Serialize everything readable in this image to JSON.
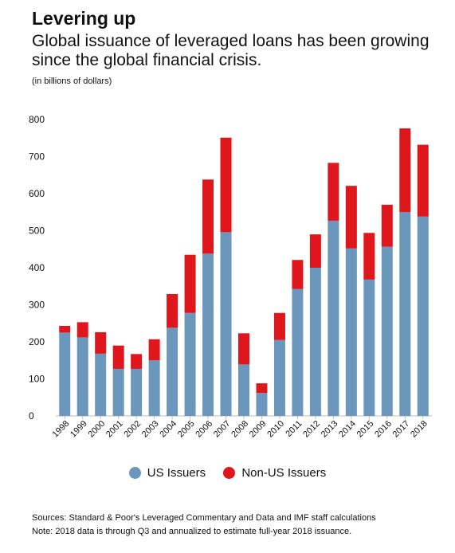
{
  "title": "Levering up",
  "subtitle": "Global issuance of leveraged loans has been growing since the global financial crisis.",
  "unit_note": "(in billions of dollars)",
  "chart_data": {
    "type": "bar",
    "stacked": true,
    "categories": [
      "1998",
      "1999",
      "2000",
      "2001",
      "2002",
      "2003",
      "2004",
      "2005",
      "2006",
      "2007",
      "2008",
      "2009",
      "2010",
      "2011",
      "2012",
      "2013",
      "2014",
      "2015",
      "2016",
      "2017",
      "2018"
    ],
    "series": [
      {
        "name": "US Issuers",
        "color": "#6b97bd",
        "values": [
          225,
          212,
          168,
          127,
          127,
          150,
          238,
          278,
          438,
          496,
          139,
          62,
          205,
          343,
          400,
          527,
          452,
          368,
          457,
          550,
          538
        ]
      },
      {
        "name": "Non-US Issuers",
        "color": "#e0161d",
        "values": [
          18,
          41,
          58,
          63,
          40,
          57,
          91,
          157,
          200,
          255,
          84,
          26,
          73,
          78,
          90,
          156,
          169,
          126,
          113,
          226,
          194
        ]
      }
    ],
    "ylim": [
      0,
      800
    ],
    "yticks": [
      0,
      100,
      200,
      300,
      400,
      500,
      600,
      700,
      800
    ],
    "grid": false,
    "legend_position": "bottom"
  },
  "legend": {
    "us_label": "US Issuers",
    "nonus_label": "Non-US Issuers"
  },
  "source_line": "Sources: Standard & Poor's Leveraged Commentary and Data and IMF staff calculations",
  "note_line": "Note: 2018 data is through Q3 and annualized to estimate full-year 2018 issuance."
}
